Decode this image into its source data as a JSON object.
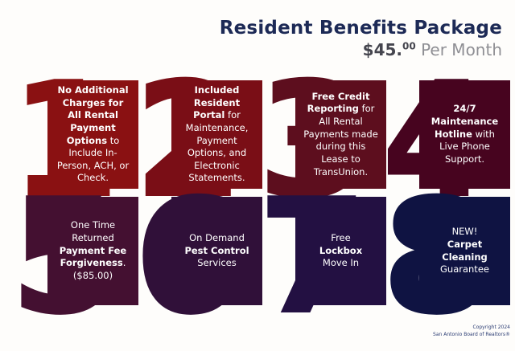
{
  "header": {
    "title": "Resident Benefits Package",
    "price": "$45.",
    "price_sup": "00",
    "price_suffix": " Per Month"
  },
  "cards": [
    {
      "number": "1",
      "color": "#8a1112",
      "segments": [
        {
          "t": "No Additional Charges for All Rental Payment Options",
          "b": true
        },
        {
          "t": " to Include In-Person, ACH, or Check.",
          "b": false
        }
      ]
    },
    {
      "number": "2",
      "color": "#7a0e16",
      "segments": [
        {
          "t": "Included Resident Portal",
          "b": true
        },
        {
          "t": " for Maintenance, Payment Options, and Electronic Statements.",
          "b": false
        }
      ]
    },
    {
      "number": "3",
      "color": "#5d0e1e",
      "segments": [
        {
          "t": "Free Credit Reporting",
          "b": true
        },
        {
          "t": " for All Rental Payments made during this Lease to TransUnion.",
          "b": false
        }
      ]
    },
    {
      "number": "4",
      "color": "#47041f",
      "segments": [
        {
          "t": "24/7 Maintenance Hotline",
          "b": true
        },
        {
          "t": " with Live Phone Support.",
          "b": false
        }
      ]
    },
    {
      "number": "5",
      "color": "#441031",
      "segments": [
        {
          "t": "One Time Returned",
          "b": false
        },
        {
          "t": "Payment Fee Forgiveness",
          "b": true
        },
        {
          "t": ".",
          "b": false
        },
        {
          "t": "($85.00)",
          "b": false
        }
      ]
    },
    {
      "number": "6",
      "color": "#301039",
      "segments": [
        {
          "t": "On Demand",
          "b": false
        },
        {
          "t": "Pest Control",
          "b": true
        },
        {
          "t": "Services",
          "b": false
        }
      ]
    },
    {
      "number": "7",
      "color": "#231042",
      "segments": [
        {
          "t": "Free",
          "b": false
        },
        {
          "t": "Lockbox",
          "b": true
        },
        {
          "t": "Move In",
          "b": false
        }
      ]
    },
    {
      "number": "8",
      "color": "#0f1342",
      "segments": [
        {
          "t": "NEW!",
          "b": false
        },
        {
          "t": "Carpet Cleaning",
          "b": true
        },
        {
          "t": "Guarantee",
          "b": false
        }
      ]
    }
  ],
  "footer": {
    "line1": "Copyright 2024",
    "line2": "San Antonio Board of Realtors®"
  }
}
